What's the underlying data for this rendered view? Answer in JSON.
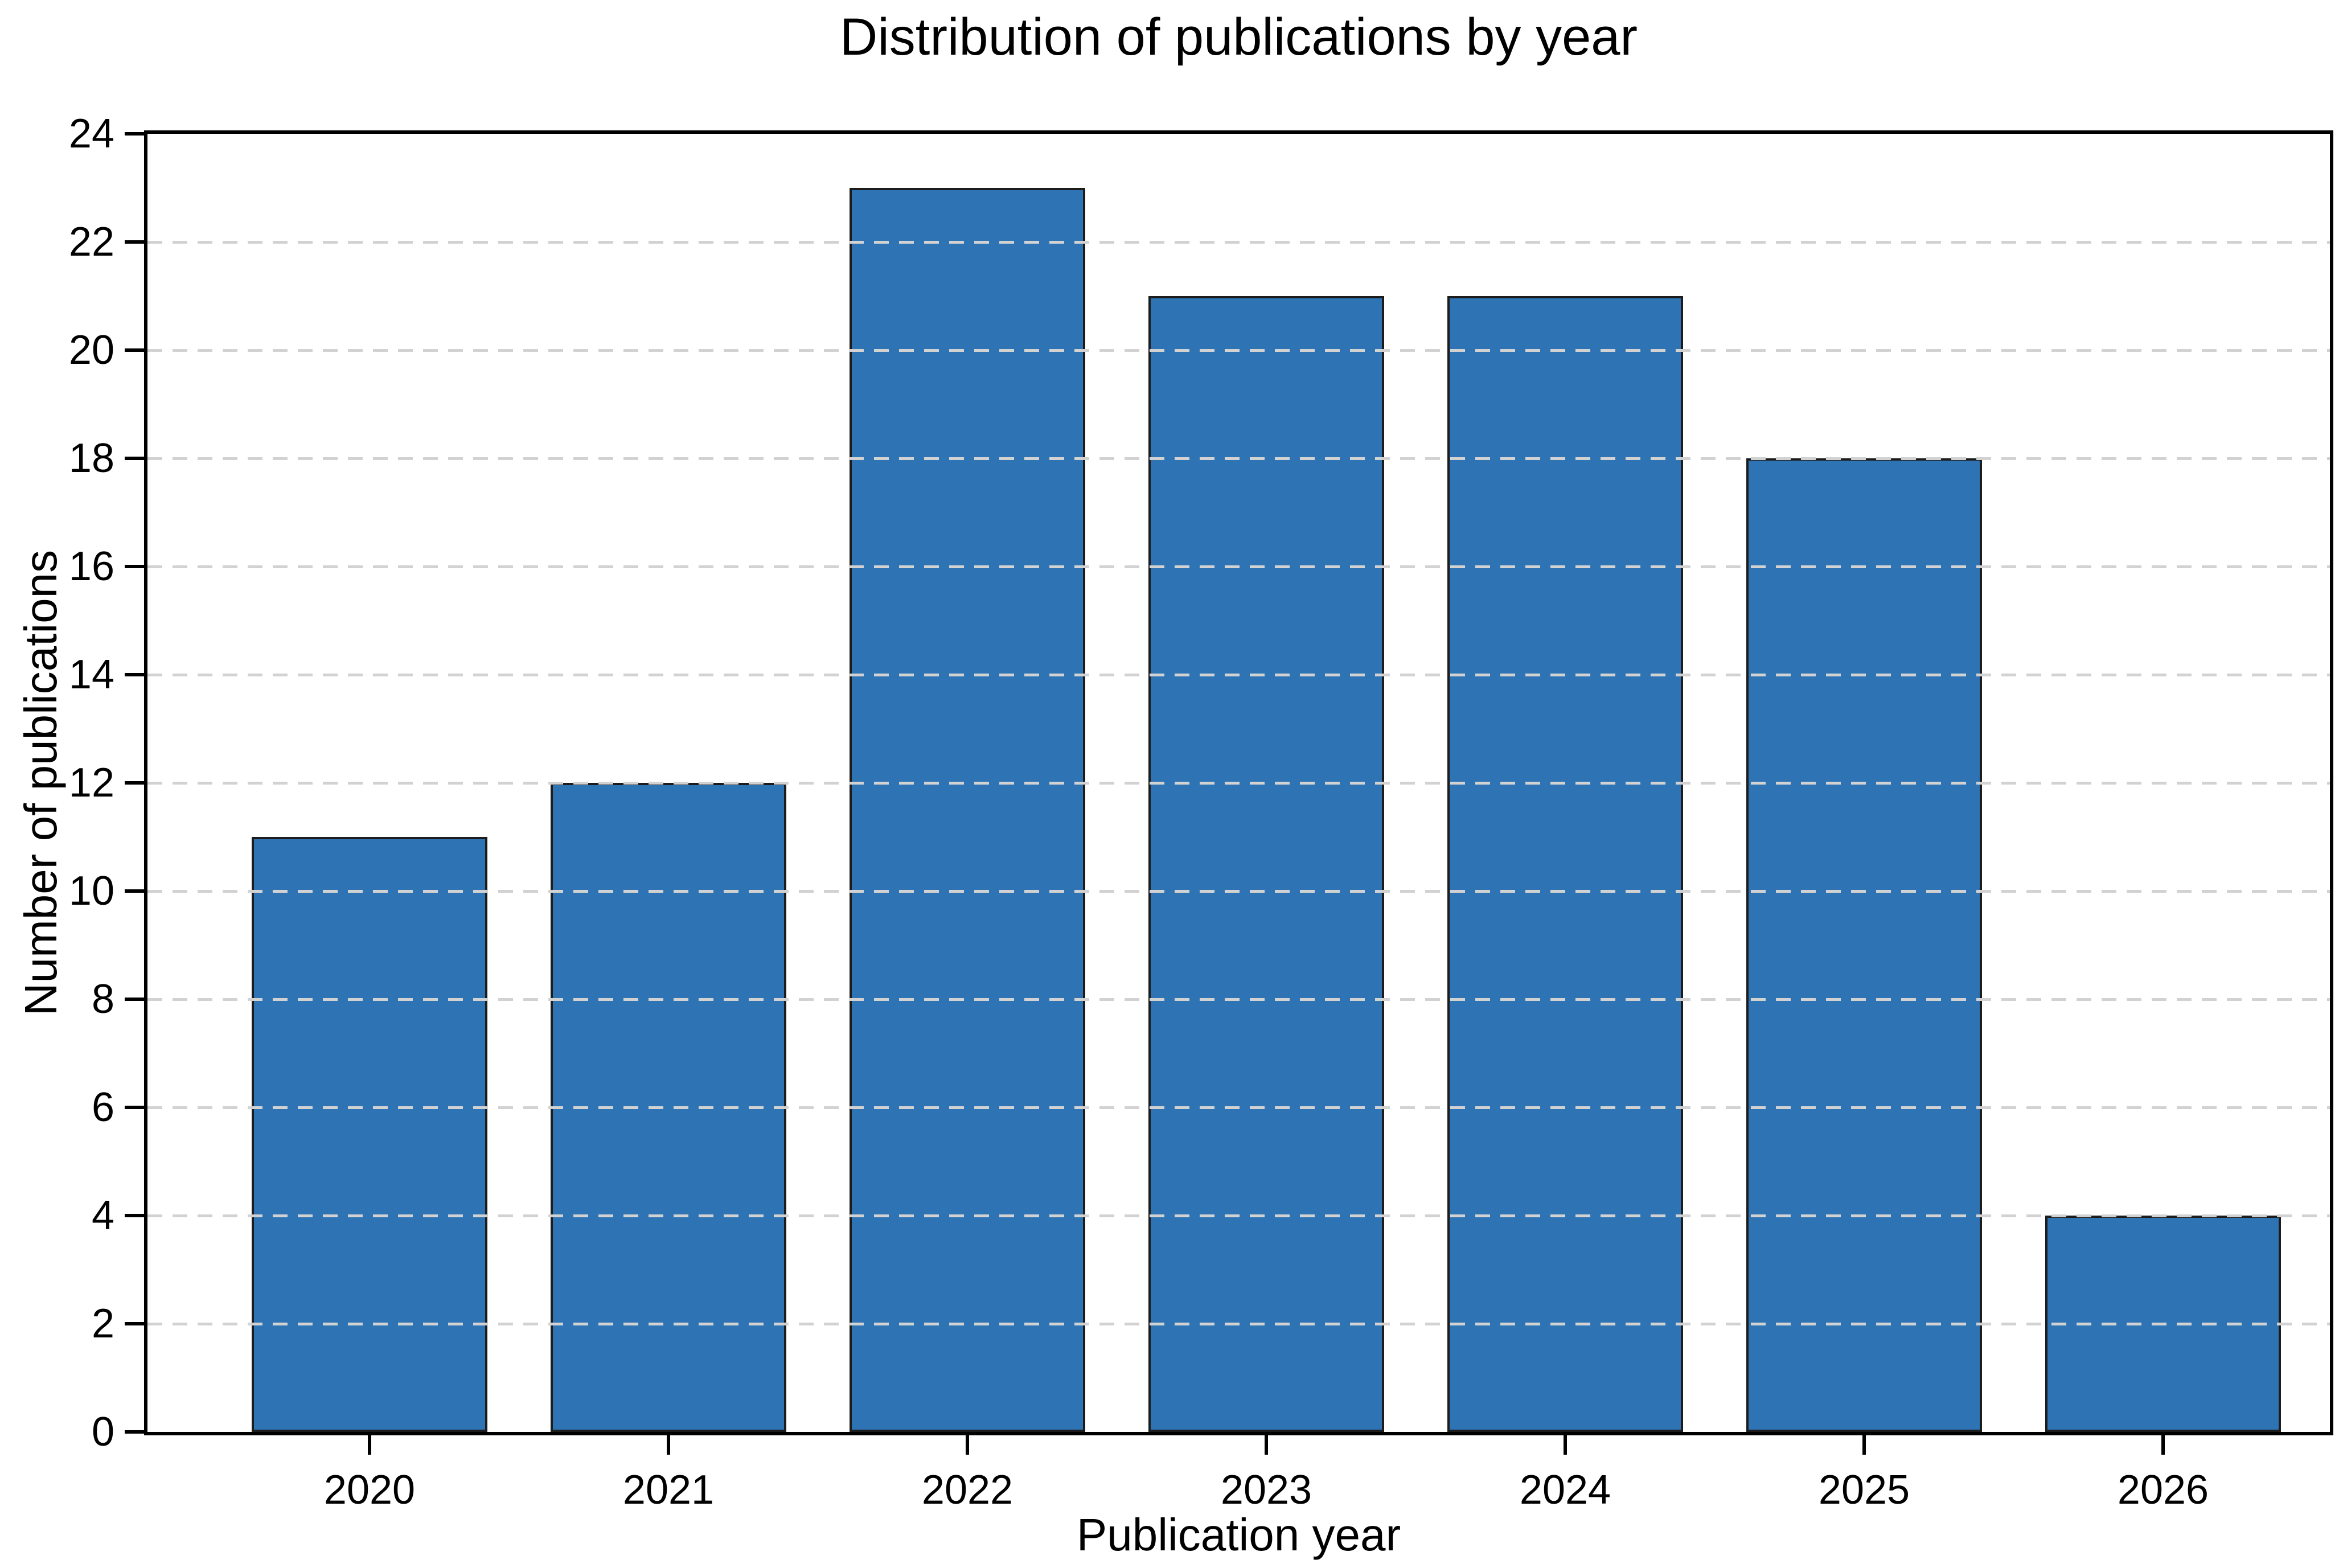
{
  "chart_data": {
    "type": "bar",
    "title": "Distribution of publications by year",
    "xlabel": "Publication year",
    "ylabel": "Number of publications",
    "categories": [
      "2020",
      "2021",
      "2022",
      "2023",
      "2024",
      "2025",
      "2026"
    ],
    "values": [
      11,
      12,
      23,
      21,
      21,
      18,
      4
    ],
    "ylim": [
      0,
      24
    ],
    "ytick_step": 2,
    "ytick_labels": [
      "0",
      "2",
      "4",
      "6",
      "8",
      "10",
      "12",
      "14",
      "16",
      "18",
      "20",
      "22",
      "24"
    ],
    "grid": "horizontal-dashed",
    "grid_over_bars": true,
    "legend_position": "none",
    "bar_color": "#2e74b5",
    "bar_edge_color": "#1c1c1c",
    "grid_color": "#d2d2d2",
    "axis_color": "#000000",
    "text_color": "#000000"
  }
}
